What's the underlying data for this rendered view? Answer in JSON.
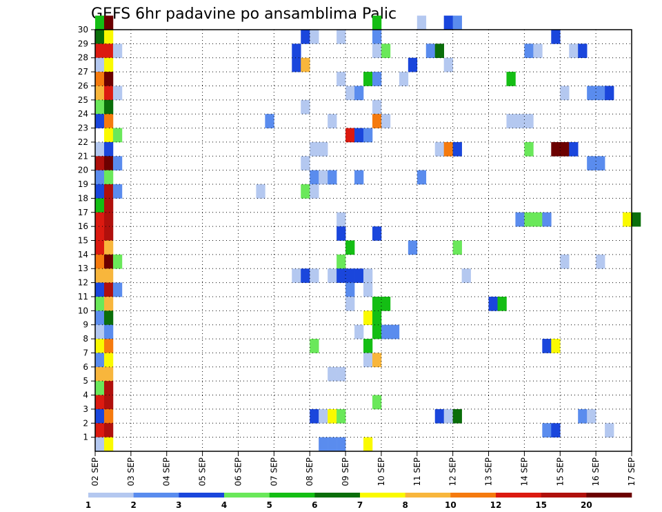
{
  "chart_data": {
    "type": "heatmap",
    "title": "GEFS 6hr padavine po ansamblima Palic",
    "xlabel": "",
    "ylabel": "",
    "x_tick_labels": [
      "02 SEP",
      "03 SEP",
      "04 SEP",
      "05 SEP",
      "06 SEP",
      "07 SEP",
      "08 SEP",
      "09 SEP",
      "10 SEP",
      "11 SEP",
      "12 SEP",
      "13 SEP",
      "14 SEP",
      "15 SEP",
      "16 SEP",
      "17 SEP"
    ],
    "y_tick_labels": [
      "1",
      "2",
      "3",
      "4",
      "5",
      "6",
      "7",
      "8",
      "9",
      "10",
      "11",
      "12",
      "13",
      "14",
      "15",
      "16",
      "17",
      "18",
      "19",
      "20",
      "21",
      "22",
      "23",
      "24",
      "25",
      "26",
      "27",
      "28",
      "29",
      "30"
    ],
    "xlim_steps": [
      0,
      60
    ],
    "ylim_members": [
      0,
      30
    ],
    "grid": true,
    "colorbar": {
      "labels": [
        "1",
        "2",
        "3",
        "4",
        "5",
        "6",
        "7",
        "8",
        "10",
        "12",
        "15",
        "20"
      ],
      "colors": [
        "#b4c8f0",
        "#5a8cee",
        "#1a46dc",
        "#6ae85a",
        "#14be14",
        "#0a6e0a",
        "#fafa00",
        "#f8b63c",
        "#f57a0e",
        "#dc1a10",
        "#b0100c",
        "#6c0000"
      ]
    },
    "series": [
      {
        "member": 30,
        "cells": [
          [
            0,
            4
          ],
          [
            1,
            11
          ],
          [
            31,
            4
          ],
          [
            36,
            0
          ],
          [
            39,
            2
          ],
          [
            40,
            1
          ]
        ]
      },
      {
        "member": 29,
        "cells": [
          [
            0,
            5
          ],
          [
            1,
            6
          ],
          [
            23,
            2
          ],
          [
            24,
            0
          ],
          [
            27,
            0
          ],
          [
            31,
            1
          ],
          [
            51,
            2
          ]
        ]
      },
      {
        "member": 28,
        "cells": [
          [
            0,
            9
          ],
          [
            1,
            9
          ],
          [
            2,
            0
          ],
          [
            22,
            2
          ],
          [
            31,
            0
          ],
          [
            32,
            3
          ],
          [
            37,
            1
          ],
          [
            38,
            5
          ],
          [
            48,
            1
          ],
          [
            49,
            0
          ],
          [
            53,
            0
          ],
          [
            54,
            2
          ]
        ]
      },
      {
        "member": 27,
        "cells": [
          [
            0,
            0
          ],
          [
            1,
            6
          ],
          [
            22,
            2
          ],
          [
            23,
            7
          ],
          [
            35,
            2
          ],
          [
            39,
            0
          ]
        ]
      },
      {
        "member": 26,
        "cells": [
          [
            0,
            8
          ],
          [
            1,
            11
          ],
          [
            27,
            0
          ],
          [
            30,
            4
          ],
          [
            31,
            1
          ],
          [
            34,
            0
          ],
          [
            46,
            4
          ]
        ]
      },
      {
        "member": 25,
        "cells": [
          [
            0,
            7
          ],
          [
            1,
            9
          ],
          [
            2,
            0
          ],
          [
            28,
            0
          ],
          [
            29,
            1
          ],
          [
            52,
            0
          ],
          [
            55,
            1
          ],
          [
            56,
            1
          ],
          [
            57,
            2
          ]
        ]
      },
      {
        "member": 24,
        "cells": [
          [
            0,
            3
          ],
          [
            1,
            5
          ],
          [
            23,
            0
          ],
          [
            31,
            0
          ]
        ]
      },
      {
        "member": 23,
        "cells": [
          [
            0,
            2
          ],
          [
            1,
            8
          ],
          [
            19,
            1
          ],
          [
            26,
            0
          ],
          [
            31,
            8
          ],
          [
            32,
            0
          ],
          [
            46,
            0
          ],
          [
            47,
            0
          ],
          [
            48,
            0
          ]
        ]
      },
      {
        "member": 22,
        "cells": [
          [
            1,
            6
          ],
          [
            2,
            3
          ],
          [
            28,
            9
          ],
          [
            29,
            2
          ],
          [
            30,
            1
          ]
        ]
      },
      {
        "member": 21,
        "cells": [
          [
            0,
            0
          ],
          [
            1,
            2
          ],
          [
            24,
            0
          ],
          [
            25,
            0
          ],
          [
            38,
            0
          ],
          [
            39,
            8
          ],
          [
            40,
            2
          ],
          [
            48,
            3
          ],
          [
            51,
            11
          ],
          [
            52,
            11
          ],
          [
            53,
            2
          ]
        ]
      },
      {
        "member": 20,
        "cells": [
          [
            0,
            10
          ],
          [
            1,
            11
          ],
          [
            2,
            1
          ],
          [
            23,
            0
          ],
          [
            55,
            1
          ],
          [
            56,
            1
          ]
        ]
      },
      {
        "member": 19,
        "cells": [
          [
            0,
            1
          ],
          [
            1,
            3
          ],
          [
            24,
            1
          ],
          [
            25,
            0
          ],
          [
            26,
            1
          ],
          [
            29,
            1
          ],
          [
            36,
            1
          ]
        ]
      },
      {
        "member": 18,
        "cells": [
          [
            0,
            2
          ],
          [
            1,
            10
          ],
          [
            2,
            1
          ],
          [
            18,
            0
          ],
          [
            23,
            3
          ],
          [
            24,
            0
          ]
        ]
      },
      {
        "member": 17,
        "cells": [
          [
            0,
            4
          ],
          [
            1,
            10
          ]
        ]
      },
      {
        "member": 16,
        "cells": [
          [
            0,
            9
          ],
          [
            1,
            10
          ],
          [
            27,
            0
          ],
          [
            47,
            1
          ],
          [
            48,
            3
          ],
          [
            49,
            3
          ],
          [
            50,
            1
          ],
          [
            59,
            6
          ],
          [
            60,
            5
          ]
        ]
      },
      {
        "member": 15,
        "cells": [
          [
            0,
            9
          ],
          [
            1,
            10
          ],
          [
            27,
            2
          ],
          [
            31,
            2
          ]
        ]
      },
      {
        "member": 14,
        "cells": [
          [
            0,
            9
          ],
          [
            1,
            7
          ],
          [
            28,
            4
          ],
          [
            35,
            1
          ],
          [
            40,
            3
          ]
        ]
      },
      {
        "member": 13,
        "cells": [
          [
            0,
            8
          ],
          [
            1,
            11
          ],
          [
            2,
            3
          ],
          [
            27,
            3
          ],
          [
            52,
            0
          ],
          [
            56,
            0
          ]
        ]
      },
      {
        "member": 12,
        "cells": [
          [
            0,
            7
          ],
          [
            1,
            7
          ],
          [
            22,
            0
          ],
          [
            23,
            2
          ],
          [
            24,
            0
          ],
          [
            26,
            0
          ],
          [
            27,
            2
          ],
          [
            28,
            2
          ],
          [
            29,
            2
          ],
          [
            30,
            0
          ],
          [
            41,
            0
          ]
        ]
      },
      {
        "member": 11,
        "cells": [
          [
            0,
            2
          ],
          [
            1,
            10
          ],
          [
            2,
            1
          ],
          [
            28,
            1
          ],
          [
            30,
            0
          ]
        ]
      },
      {
        "member": 10,
        "cells": [
          [
            0,
            3
          ],
          [
            1,
            7
          ],
          [
            28,
            0
          ],
          [
            31,
            4
          ],
          [
            32,
            4
          ],
          [
            44,
            2
          ],
          [
            45,
            4
          ]
        ]
      },
      {
        "member": 9,
        "cells": [
          [
            0,
            1
          ],
          [
            1,
            5
          ],
          [
            30,
            6
          ],
          [
            31,
            4
          ]
        ]
      },
      {
        "member": 8,
        "cells": [
          [
            0,
            0
          ],
          [
            1,
            1
          ],
          [
            29,
            0
          ],
          [
            31,
            4
          ],
          [
            32,
            1
          ],
          [
            33,
            1
          ]
        ]
      },
      {
        "member": 7,
        "cells": [
          [
            0,
            6
          ],
          [
            1,
            8
          ],
          [
            24,
            3
          ],
          [
            30,
            4
          ],
          [
            50,
            2
          ],
          [
            51,
            6
          ]
        ]
      },
      {
        "member": 6,
        "cells": [
          [
            0,
            1
          ],
          [
            1,
            6
          ],
          [
            30,
            0
          ],
          [
            31,
            7
          ]
        ]
      },
      {
        "member": 5,
        "cells": [
          [
            0,
            7
          ],
          [
            1,
            7
          ],
          [
            26,
            0
          ],
          [
            27,
            0
          ]
        ]
      },
      {
        "member": 4,
        "cells": [
          [
            0,
            3
          ],
          [
            1,
            10
          ]
        ]
      },
      {
        "member": 3,
        "cells": [
          [
            0,
            9
          ],
          [
            1,
            10
          ],
          [
            31,
            3
          ]
        ]
      },
      {
        "member": 2,
        "cells": [
          [
            0,
            2
          ],
          [
            1,
            8
          ],
          [
            24,
            2
          ],
          [
            25,
            0
          ],
          [
            26,
            6
          ],
          [
            27,
            3
          ],
          [
            38,
            2
          ],
          [
            39,
            0
          ],
          [
            40,
            5
          ],
          [
            54,
            1
          ],
          [
            55,
            0
          ]
        ]
      },
      {
        "member": 1,
        "cells": [
          [
            0,
            9
          ],
          [
            1,
            10
          ],
          [
            50,
            1
          ],
          [
            51,
            2
          ],
          [
            57,
            0
          ]
        ]
      },
      {
        "member": 0,
        "cells": [
          [
            0,
            0
          ],
          [
            1,
            6
          ],
          [
            25,
            1
          ],
          [
            26,
            1
          ],
          [
            27,
            1
          ],
          [
            30,
            6
          ]
        ]
      }
    ]
  }
}
